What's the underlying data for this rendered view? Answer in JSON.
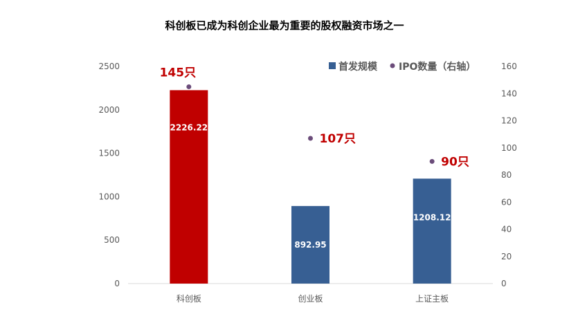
{
  "colors": {
    "highlight_bar": "#c00000",
    "normal_bar": "#375f93",
    "ipo_point": "#6b4c7a",
    "ipo_label": "#c00000",
    "axis_text": "#595959",
    "axis_line": "#d9d9d9"
  },
  "chart_data": {
    "type": "bar",
    "title": "科创板已成为科创企业最为重要的股权融资市场之一",
    "categories": [
      "科创板",
      "创业板",
      "上证主板"
    ],
    "series": [
      {
        "name": "首发规模",
        "axis": "left",
        "values": [
          2226.22,
          892.95,
          1208.12
        ],
        "value_labels": [
          "2226.22",
          "892.95",
          "1208.12"
        ],
        "type": "bar"
      },
      {
        "name": "IPO数量（右轴）",
        "axis": "right",
        "values": [
          145,
          107,
          90
        ],
        "value_labels": [
          "145只",
          "107只",
          "90只"
        ],
        "type": "scatter"
      }
    ],
    "ylim": [
      0,
      2500
    ],
    "y_ticks": [
      "0",
      "500",
      "1000",
      "1500",
      "2000",
      "2500"
    ],
    "y2lim": [
      0,
      160
    ],
    "y2_ticks": [
      "0",
      "20",
      "40",
      "60",
      "80",
      "100",
      "120",
      "140",
      "160"
    ],
    "legend_position": "top-right",
    "grid": false
  }
}
